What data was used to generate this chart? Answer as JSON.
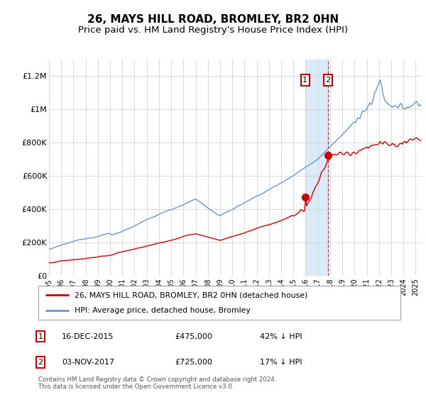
{
  "title": "26, MAYS HILL ROAD, BROMLEY, BR2 0HN",
  "subtitle": "Price paid vs. HM Land Registry's House Price Index (HPI)",
  "title_fontsize": 11,
  "subtitle_fontsize": 9.5,
  "ylim": [
    0,
    1300000
  ],
  "xlim_start": 1995.0,
  "xlim_end": 2025.5,
  "yticks": [
    0,
    200000,
    400000,
    600000,
    800000,
    1000000,
    1200000
  ],
  "ytick_labels": [
    "£0",
    "£200K",
    "£400K",
    "£600K",
    "£800K",
    "£1M",
    "£1.2M"
  ],
  "xtick_years": [
    1995,
    1996,
    1997,
    1998,
    1999,
    2000,
    2001,
    2002,
    2003,
    2004,
    2005,
    2006,
    2007,
    2008,
    2009,
    2010,
    2011,
    2012,
    2013,
    2014,
    2015,
    2016,
    2017,
    2018,
    2019,
    2020,
    2021,
    2022,
    2023,
    2024,
    2025
  ],
  "transaction1_x": 2015.96,
  "transaction1_y": 475000,
  "transaction2_x": 2017.84,
  "transaction2_y": 725000,
  "transaction1_label": "16-DEC-2015",
  "transaction1_price": "£475,000",
  "transaction1_hpi": "42% ↓ HPI",
  "transaction2_label": "03-NOV-2017",
  "transaction2_price": "£725,000",
  "transaction2_hpi": "17% ↓ HPI",
  "red_color": "#cc0000",
  "blue_color": "#6699cc",
  "shade_color": "#daeaf7",
  "marker_box_color": "#cc0000",
  "background_color": "#ffffff",
  "grid_color": "#cccccc",
  "footnote": "Contains HM Land Registry data © Crown copyright and database right 2024.\nThis data is licensed under the Open Government Licence v3.0.",
  "legend1_label": "26, MAYS HILL ROAD, BROMLEY, BR2 0HN (detached house)",
  "legend2_label": "HPI: Average price, detached house, Bromley"
}
